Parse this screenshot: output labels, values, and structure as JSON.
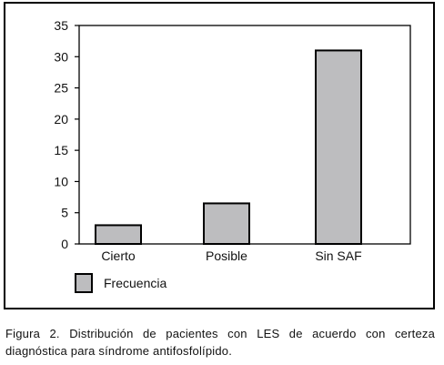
{
  "chart_data": {
    "type": "bar",
    "categories": [
      "Cierto",
      "Posible",
      "Sin SAF"
    ],
    "series": [
      {
        "name": "Frecuencia",
        "values": [
          3,
          6.5,
          31
        ]
      }
    ],
    "ylim": [
      0,
      35
    ],
    "yticks": [
      "0",
      "5",
      "10",
      "15",
      "20",
      "25",
      "30",
      "35"
    ],
    "grid": false,
    "legend_position": "bottom-left",
    "bar_color": "#bdbdbf"
  },
  "legend": {
    "label": "Frecuencia"
  },
  "caption": "Figura 2. Distribución de pacientes con LES de acuerdo con certeza diagnóstica para síndrome antifosfolípido."
}
